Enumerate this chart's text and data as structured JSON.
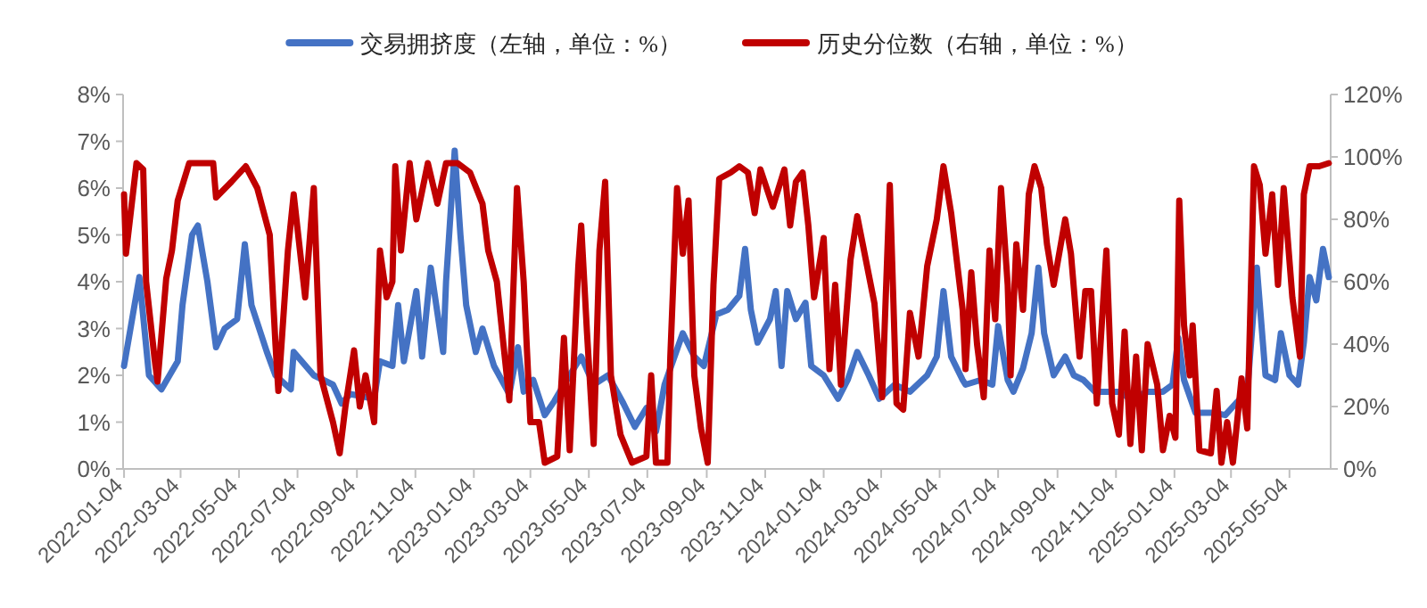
{
  "chart_data": {
    "type": "line",
    "legend": "top",
    "marker": "none",
    "line_style": "solid",
    "xlim": [
      "2022-01-03",
      "2025-06-16"
    ],
    "xticks": [
      "2022-01-04",
      "2022-03-04",
      "2022-05-04",
      "2022-07-04",
      "2022-09-04",
      "2022-11-04",
      "2023-01-04",
      "2023-03-04",
      "2023-05-04",
      "2023-07-04",
      "2023-09-04",
      "2023-11-04",
      "2024-01-04",
      "2024-03-04",
      "2024-05-04",
      "2024-07-04",
      "2024-09-04",
      "2024-11-04",
      "2025-01-04",
      "2025-03-04",
      "2025-05-04"
    ],
    "ylim": [
      0,
      8
    ],
    "yticks": [
      {
        "value": 0,
        "label": "0%"
      },
      {
        "value": 1,
        "label": "1%"
      },
      {
        "value": 2,
        "label": "2%"
      },
      {
        "value": 3,
        "label": "3%"
      },
      {
        "value": 4,
        "label": "4%"
      },
      {
        "value": 5,
        "label": "5%"
      },
      {
        "value": 6,
        "label": "6%"
      },
      {
        "value": 7,
        "label": "7%"
      },
      {
        "value": 8,
        "label": "8%"
      }
    ],
    "y2lim": [
      0,
      120
    ],
    "y2ticks": [
      {
        "value": 0,
        "label": "0%"
      },
      {
        "value": 20,
        "label": "20%"
      },
      {
        "value": 40,
        "label": "40%"
      },
      {
        "value": 60,
        "label": "60%"
      },
      {
        "value": 80,
        "label": "80%"
      },
      {
        "value": 100,
        "label": "100%"
      },
      {
        "value": 120,
        "label": "120%"
      }
    ],
    "series": [
      {
        "name": "交易拥挤度（左轴，单位：%）",
        "color": "#4472c4",
        "axis": "y",
        "x": [
          "2022-01-04",
          "2022-01-20",
          "2022-01-30",
          "2022-02-12",
          "2022-03-01",
          "2022-03-06",
          "2022-03-16",
          "2022-03-22",
          "2022-04-01",
          "2022-04-10",
          "2022-04-19",
          "2022-05-02",
          "2022-05-10",
          "2022-05-17",
          "2022-06-02",
          "2022-06-11",
          "2022-06-27",
          "2022-06-30",
          "2022-07-21",
          "2022-08-10",
          "2022-08-19",
          "2022-08-28",
          "2022-09-22",
          "2022-09-28",
          "2022-10-11",
          "2022-10-17",
          "2022-10-23",
          "2022-11-05",
          "2022-11-11",
          "2022-11-20",
          "2022-12-03",
          "2022-12-06",
          "2022-12-15",
          "2022-12-21",
          "2022-12-27",
          "2023-01-06",
          "2023-01-13",
          "2023-01-25",
          "2023-02-10",
          "2023-02-19",
          "2023-02-25",
          "2023-03-07",
          "2023-03-19",
          "2023-03-29",
          "2023-04-08",
          "2023-04-26",
          "2023-05-09",
          "2023-05-24",
          "2023-06-09",
          "2023-06-21",
          "2023-07-03",
          "2023-07-13",
          "2023-07-22",
          "2023-08-10",
          "2023-08-22",
          "2023-09-01",
          "2023-09-14",
          "2023-09-26",
          "2023-10-08",
          "2023-10-14",
          "2023-10-20",
          "2023-10-27",
          "2023-11-09",
          "2023-11-15",
          "2023-11-21",
          "2023-11-27",
          "2023-12-06",
          "2023-12-16",
          "2023-12-22",
          "2024-01-04",
          "2024-01-19",
          "2024-01-29",
          "2024-02-08",
          "2024-02-20",
          "2024-03-02",
          "2024-03-18",
          "2024-04-03",
          "2024-04-21",
          "2024-05-01",
          "2024-05-08",
          "2024-05-16",
          "2024-05-28",
          "2024-05-31",
          "2024-06-16",
          "2024-06-28",
          "2024-07-04",
          "2024-07-14",
          "2024-07-20",
          "2024-07-30",
          "2024-08-08",
          "2024-08-15",
          "2024-08-21",
          "2024-08-31",
          "2024-09-12",
          "2024-09-21",
          "2024-10-01",
          "2024-10-13",
          "2024-10-25",
          "2024-11-07",
          "2024-11-19",
          "2024-12-07",
          "2024-12-23",
          "2025-01-02",
          "2025-01-08",
          "2025-01-14",
          "2025-01-26",
          "2025-02-14",
          "2025-02-26",
          "2025-03-09",
          "2025-03-21",
          "2025-03-31",
          "2025-04-09",
          "2025-04-19",
          "2025-04-25",
          "2025-05-04",
          "2025-05-13",
          "2025-05-19",
          "2025-05-25",
          "2025-06-01",
          "2025-06-08",
          "2025-06-14"
        ],
        "values": [
          2.2,
          4.1,
          2.0,
          1.7,
          2.3,
          3.5,
          5.0,
          5.2,
          4.0,
          2.6,
          3.0,
          3.2,
          4.8,
          3.5,
          2.5,
          2.0,
          1.7,
          2.5,
          2.0,
          1.8,
          1.4,
          1.6,
          1.5,
          2.3,
          2.2,
          3.5,
          2.3,
          3.8,
          2.4,
          4.3,
          2.5,
          4.0,
          6.8,
          5.0,
          3.5,
          2.5,
          3.0,
          2.2,
          1.6,
          2.6,
          1.65,
          1.9,
          1.15,
          1.45,
          1.8,
          2.4,
          1.8,
          2.0,
          1.4,
          0.9,
          1.3,
          0.8,
          1.8,
          2.9,
          2.4,
          2.2,
          3.3,
          3.4,
          3.7,
          4.7,
          3.4,
          2.7,
          3.2,
          3.8,
          2.2,
          3.8,
          3.2,
          3.55,
          2.2,
          2.0,
          1.5,
          1.9,
          2.5,
          2.0,
          1.5,
          1.8,
          1.65,
          2.0,
          2.4,
          3.8,
          2.4,
          1.9,
          1.8,
          1.9,
          1.8,
          3.05,
          1.9,
          1.65,
          2.15,
          2.9,
          4.3,
          2.9,
          2.0,
          2.4,
          2.0,
          1.9,
          1.65,
          1.65,
          1.65,
          1.5,
          1.65,
          1.65,
          1.8,
          2.8,
          1.9,
          1.2,
          1.2,
          1.15,
          1.4,
          1.65,
          4.3,
          2.0,
          1.9,
          2.9,
          2.0,
          1.8,
          2.7,
          4.1,
          3.6,
          4.7,
          4.1
        ]
      },
      {
        "name": "历史分位数（右轴，单位：%）",
        "color": "#c00000",
        "axis": "y2",
        "x": [
          "2022-01-04",
          "2022-01-06",
          "2022-01-17",
          "2022-01-24",
          "2022-01-27",
          "2022-02-05",
          "2022-02-08",
          "2022-02-17",
          "2022-02-23",
          "2022-03-01",
          "2022-03-13",
          "2022-04-07",
          "2022-04-10",
          "2022-04-26",
          "2022-05-11",
          "2022-05-23",
          "2022-06-05",
          "2022-06-11",
          "2022-06-14",
          "2022-06-24",
          "2022-06-30",
          "2022-07-12",
          "2022-07-21",
          "2022-07-28",
          "2022-08-10",
          "2022-08-17",
          "2022-08-23",
          "2022-09-01",
          "2022-09-07",
          "2022-09-13",
          "2022-09-22",
          "2022-09-28",
          "2022-10-05",
          "2022-10-11",
          "2022-10-14",
          "2022-10-20",
          "2022-10-29",
          "2022-11-05",
          "2022-11-17",
          "2022-11-27",
          "2022-12-06",
          "2022-12-18",
          "2022-12-31",
          "2023-01-13",
          "2023-01-19",
          "2023-01-28",
          "2023-02-10",
          "2023-02-18",
          "2023-02-25",
          "2023-03-04",
          "2023-03-13",
          "2023-03-19",
          "2023-04-01",
          "2023-04-08",
          "2023-04-14",
          "2023-04-23",
          "2023-04-26",
          "2023-05-02",
          "2023-05-09",
          "2023-05-15",
          "2023-05-21",
          "2023-05-27",
          "2023-06-06",
          "2023-06-18",
          "2023-07-03",
          "2023-07-08",
          "2023-07-13",
          "2023-07-25",
          "2023-07-28",
          "2023-08-04",
          "2023-08-10",
          "2023-08-16",
          "2023-08-22",
          "2023-08-29",
          "2023-09-05",
          "2023-09-11",
          "2023-09-17",
          "2023-09-29",
          "2023-10-08",
          "2023-10-17",
          "2023-10-24",
          "2023-10-30",
          "2023-11-12",
          "2023-11-24",
          "2023-11-30",
          "2023-12-06",
          "2023-12-13",
          "2023-12-19",
          "2023-12-25",
          "2024-01-04",
          "2024-01-10",
          "2024-01-16",
          "2024-01-22",
          "2024-02-01",
          "2024-02-08",
          "2024-02-17",
          "2024-02-26",
          "2024-03-05",
          "2024-03-13",
          "2024-03-20",
          "2024-03-27",
          "2024-04-03",
          "2024-04-12",
          "2024-04-21",
          "2024-05-01",
          "2024-05-08",
          "2024-05-16",
          "2024-05-28",
          "2024-05-31",
          "2024-06-06",
          "2024-06-12",
          "2024-06-19",
          "2024-06-25",
          "2024-07-01",
          "2024-07-07",
          "2024-07-14",
          "2024-07-17",
          "2024-07-23",
          "2024-07-30",
          "2024-08-05",
          "2024-08-11",
          "2024-08-18",
          "2024-08-24",
          "2024-08-31",
          "2024-09-12",
          "2024-09-18",
          "2024-09-27",
          "2024-10-03",
          "2024-10-09",
          "2024-10-15",
          "2024-10-25",
          "2024-10-31",
          "2024-11-07",
          "2024-11-13",
          "2024-11-19",
          "2024-11-25",
          "2024-12-01",
          "2024-12-07",
          "2024-12-17",
          "2024-12-23",
          "2024-12-30",
          "2025-01-05",
          "2025-01-09",
          "2025-01-14",
          "2025-01-20",
          "2025-01-23",
          "2025-01-30",
          "2025-02-11",
          "2025-02-17",
          "2025-02-22",
          "2025-02-28",
          "2025-03-06",
          "2025-03-15",
          "2025-03-21",
          "2025-03-28",
          "2025-04-03",
          "2025-04-09",
          "2025-04-16",
          "2025-04-22",
          "2025-04-28",
          "2025-05-07",
          "2025-05-15",
          "2025-05-19",
          "2025-05-25",
          "2025-06-04",
          "2025-06-14"
        ],
        "values": [
          88,
          69,
          98,
          96,
          60,
          35,
          28,
          61,
          70,
          86,
          98,
          98,
          87,
          92,
          97,
          90,
          75,
          40,
          25,
          70,
          88,
          55,
          90,
          30,
          15,
          5,
          20,
          38,
          20,
          30,
          15,
          70,
          55,
          60,
          97,
          70,
          98,
          80,
          98,
          85,
          98,
          98,
          95,
          85,
          70,
          60,
          22,
          90,
          60,
          15,
          15,
          2,
          4,
          42,
          6,
          65,
          78,
          44,
          8,
          70,
          92,
          30,
          11,
          2,
          4,
          30,
          2,
          2,
          36,
          90,
          69,
          86,
          30,
          13,
          2,
          59,
          93,
          95,
          97,
          95,
          82,
          96,
          84,
          96,
          78,
          92,
          95,
          78,
          55,
          74,
          32,
          59,
          27,
          67,
          81,
          67,
          53,
          23,
          91,
          21,
          19,
          50,
          36,
          65,
          80,
          97,
          82,
          51,
          32,
          63,
          40,
          23,
          70,
          48,
          90,
          59,
          30,
          72,
          51,
          88,
          97,
          90,
          72,
          59,
          80,
          69,
          36,
          57,
          57,
          21,
          70,
          21,
          11,
          44,
          8,
          36,
          6,
          40,
          27,
          6,
          17,
          10,
          86,
          46,
          30,
          46,
          6,
          5,
          25,
          2,
          15,
          2,
          29,
          13,
          97,
          91,
          69,
          88,
          59,
          90,
          55,
          36,
          88,
          97,
          97,
          98
        ]
      }
    ]
  }
}
